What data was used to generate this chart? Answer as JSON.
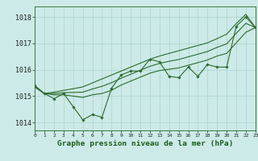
{
  "title": "Graphe pression niveau de la mer (hPa)",
  "x_values": [
    0,
    1,
    2,
    3,
    4,
    5,
    6,
    7,
    8,
    9,
    10,
    11,
    12,
    13,
    14,
    15,
    16,
    17,
    18,
    19,
    20,
    21,
    22,
    23
  ],
  "line_main": [
    1015.4,
    1015.1,
    1014.9,
    1015.1,
    1014.6,
    1014.1,
    1014.3,
    1014.2,
    1015.3,
    1015.8,
    1015.95,
    1015.95,
    1016.4,
    1016.3,
    1015.75,
    1015.7,
    1016.1,
    1015.75,
    1016.2,
    1016.1,
    1016.1,
    1017.65,
    1018.0,
    1017.6
  ],
  "line_upper": [
    1015.35,
    1015.1,
    1015.15,
    1015.22,
    1015.28,
    1015.35,
    1015.5,
    1015.65,
    1015.8,
    1015.95,
    1016.1,
    1016.25,
    1016.4,
    1016.52,
    1016.62,
    1016.72,
    1016.82,
    1016.92,
    1017.02,
    1017.18,
    1017.35,
    1017.75,
    1018.1,
    1017.6
  ],
  "line_lower": [
    1015.35,
    1015.1,
    1015.05,
    1015.05,
    1015.0,
    1014.95,
    1015.05,
    1015.1,
    1015.22,
    1015.42,
    1015.57,
    1015.72,
    1015.87,
    1015.97,
    1016.02,
    1016.07,
    1016.17,
    1016.27,
    1016.37,
    1016.52,
    1016.62,
    1017.02,
    1017.42,
    1017.6
  ],
  "line_mid": [
    1015.35,
    1015.1,
    1015.1,
    1015.13,
    1015.14,
    1015.15,
    1015.27,
    1015.37,
    1015.51,
    1015.68,
    1015.83,
    1015.98,
    1016.13,
    1016.24,
    1016.32,
    1016.39,
    1016.49,
    1016.59,
    1016.69,
    1016.85,
    1016.98,
    1017.38,
    1017.76,
    1017.6
  ],
  "ylim": [
    1013.7,
    1018.4
  ],
  "yticks": [
    1014,
    1015,
    1016,
    1017,
    1018
  ],
  "xlim": [
    0,
    23
  ],
  "bg_color": "#cceae7",
  "line_color": "#2d6a2d",
  "grid_color": "#aad4cc",
  "title_color": "#1a5c1a",
  "title_fontsize": 6.8,
  "ytick_fontsize": 6.0,
  "xtick_fontsize": 4.5
}
